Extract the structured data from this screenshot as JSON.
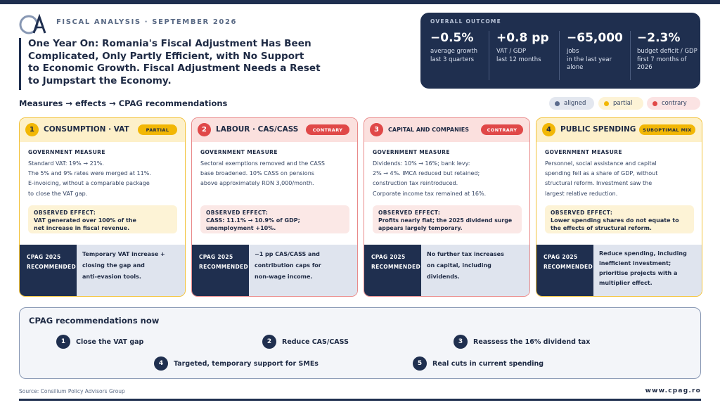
{
  "header": {
    "kicker": "FISCAL ANALYSIS · SEPTEMBER 2026",
    "title_lines": [
      "One Year On: Romania's Fiscal Adjustment Has Been",
      "Complicated, Only Partly Efficient, with No Support",
      "to Economic Growth. Fiscal Adjustment Needs a Reset",
      "to Jumpstart the Economy."
    ]
  },
  "outcome": {
    "label": "OVERALL OUTCOME",
    "metrics": [
      {
        "value": "−0.5%",
        "caption": [
          "average growth",
          "last 3 quarters"
        ]
      },
      {
        "value": "+0.8 pp",
        "caption": [
          "VAT / GDP",
          "last 12 months"
        ]
      },
      {
        "value": "−65,000",
        "caption": [
          "jobs",
          "in the last year",
          "alone"
        ]
      },
      {
        "value": "−2.3%",
        "caption": [
          "budget deficit / GDP",
          "first 7 months of 2026"
        ]
      }
    ]
  },
  "section_title": "Measures → effects → CPAG recommendations",
  "legend": [
    {
      "label": "aligned",
      "color": "#5b6b8c",
      "bg": "#e3e7ef"
    },
    {
      "label": "partial",
      "color": "#f2b705",
      "bg": "#fdf3d6"
    },
    {
      "label": "contrary",
      "color": "#e04848",
      "bg": "#fbe3e3"
    }
  ],
  "cards": [
    {
      "num": "1",
      "title": "CONSUMPTION · VAT",
      "badge": "PARTIAL",
      "gm_label": "GOVERNMENT MEASURE",
      "gm_lines": [
        "Standard VAT: 19% → 21%.",
        "The 5% and 9% rates were merged at 11%.",
        "E-invoicing, without a comparable package",
        "to close the VAT gap."
      ],
      "effect_label": "OBSERVED EFFECT:",
      "effect_lines": [
        "VAT generated over 100% of the",
        "net increase in fiscal revenue."
      ],
      "rec_label": [
        "CPAG 2025",
        "RECOMMENDED"
      ],
      "rec_lines": [
        "Temporary VAT increase +",
        "closing the gap and",
        "anti-evasion tools."
      ]
    },
    {
      "num": "2",
      "title": "LABOUR · CAS/CASS",
      "badge": "CONTRARY",
      "gm_label": "GOVERNMENT MEASURE",
      "gm_lines": [
        "Sectoral exemptions removed and the CASS",
        "base broadened. 10% CASS on pensions",
        "above approximately RON 3,000/month."
      ],
      "effect_label": "OBSERVED EFFECT:",
      "effect_lines": [
        "CASS: 11.1% → 10.9% of GDP;",
        "unemployment +10%."
      ],
      "rec_label": [
        "CPAG 2025",
        "RECOMMENDED"
      ],
      "rec_lines": [
        "−1 pp CAS/CASS and",
        "contribution caps for",
        "non-wage income."
      ]
    },
    {
      "num": "3",
      "title": "CAPITAL AND COMPANIES",
      "badge": "CONTRARY",
      "gm_label": "GOVERNMENT MEASURE",
      "gm_lines": [
        "Dividends: 10% → 16%; bank levy:",
        "2% → 4%. IMCA reduced but retained;",
        "construction tax reintroduced.",
        "Corporate income tax remained at 16%."
      ],
      "effect_label": "OBSERVED EFFECT:",
      "effect_lines": [
        "Profits nearly flat; the 2025 dividend surge",
        "appears largely temporary."
      ],
      "rec_label": [
        "CPAG 2025",
        "RECOMMENDED"
      ],
      "rec_lines": [
        "No further tax increases",
        "on capital, including",
        "dividends."
      ]
    },
    {
      "num": "4",
      "title": "PUBLIC SPENDING",
      "badge": "SUBOPTIMAL MIX",
      "gm_label": "GOVERNMENT MEASURE",
      "gm_lines": [
        "Personnel, social assistance and capital",
        "spending fell as a share of GDP, without",
        "structural reform. Investment saw the",
        "largest relative reduction."
      ],
      "effect_label": "OBSERVED EFFECT:",
      "effect_lines": [
        "Lower spending shares do not equate to",
        "the effects of structural reform."
      ],
      "rec_label": [
        "CPAG 2025",
        "RECOMMENDED"
      ],
      "rec_lines": [
        "Reduce spending, including",
        "inefficient investment;",
        "prioritise projects with a",
        "multiplier effect."
      ]
    }
  ],
  "now": {
    "title": "CPAG recommendations now",
    "items": [
      {
        "num": "1",
        "label": "Close the VAT gap"
      },
      {
        "num": "2",
        "label": "Reduce CAS/CASS"
      },
      {
        "num": "3",
        "label": "Reassess the 16% dividend tax"
      },
      {
        "num": "4",
        "label": "Targeted, temporary support for SMEs"
      },
      {
        "num": "5",
        "label": "Real cuts in current spending"
      }
    ]
  },
  "footer": {
    "source": "Source: Consilium Policy Advisors Group",
    "site": "www.cpag.ro"
  },
  "colors": {
    "navy": "#1f2f4f",
    "partial_border": "#f2c23a",
    "partial_fill": "#fdf3d6",
    "partial_head": "#fdf0c9",
    "contrary_border": "#e98a8a",
    "contrary_fill": "#fbe8e6",
    "contrary_head": "#fbe0de",
    "contrary_badge": "#e04848",
    "partial_badge": "#f2b705"
  }
}
